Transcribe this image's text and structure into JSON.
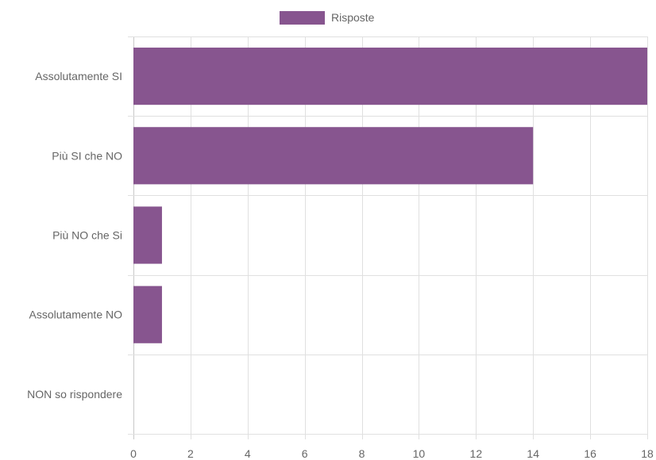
{
  "chart_data": {
    "type": "bar",
    "orientation": "horizontal",
    "categories": [
      "Assolutamente SI",
      "Più SI che NO",
      "Più NO che Si",
      "Assolutamente NO",
      "NON so rispondere"
    ],
    "series": [
      {
        "name": "Risposte",
        "values": [
          18,
          14,
          1,
          1,
          0
        ],
        "color": "#87558f"
      }
    ],
    "xlim": [
      0,
      18
    ],
    "xticks": [
      "0",
      "2",
      "4",
      "6",
      "8",
      "10",
      "12",
      "14",
      "16",
      "18"
    ],
    "grid": true,
    "legend_position": "top-center"
  }
}
